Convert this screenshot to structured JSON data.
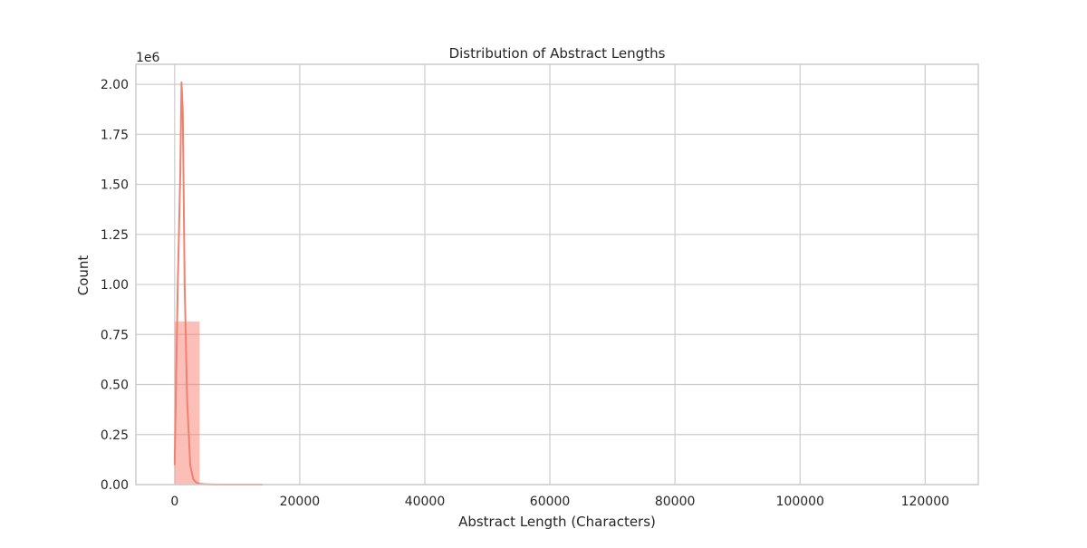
{
  "chart_data": {
    "type": "bar",
    "title": "Distribution of Abstract Lengths",
    "xlabel": "Abstract Length (Characters)",
    "ylabel": "Count",
    "y_offset_label": "1e6",
    "xlim": [
      -6200,
      128500
    ],
    "ylim": [
      0,
      2100000
    ],
    "x_ticks": [
      0,
      20000,
      40000,
      60000,
      80000,
      100000,
      120000
    ],
    "x_tick_labels": [
      "0",
      "20000",
      "40000",
      "60000",
      "80000",
      "100000",
      "120000"
    ],
    "y_ticks": [
      0,
      250000,
      500000,
      750000,
      1000000,
      1250000,
      1500000,
      1750000,
      2000000
    ],
    "y_tick_labels": [
      "0.00",
      "0.25",
      "0.50",
      "0.75",
      "1.00",
      "1.25",
      "1.50",
      "1.75",
      "2.00"
    ],
    "grid": true,
    "colors": {
      "bar": "#fa8072",
      "kde": "#f08070",
      "grid": "#cccccc",
      "spine": "#cccccc"
    },
    "bins": [
      {
        "x0": 0,
        "x1": 4000,
        "count": 815000
      },
      {
        "x0": 4000,
        "x1": 8000,
        "count": 4000
      },
      {
        "x0": 8000,
        "x1": 12000,
        "count": 600
      },
      {
        "x0": 12000,
        "x1": 16000,
        "count": 150
      }
    ],
    "kde": {
      "x": [
        0,
        500,
        900,
        1100,
        1300,
        1600,
        2000,
        2500,
        3000,
        3500,
        4000,
        5000,
        6000,
        8000,
        10000,
        14000
      ],
      "y": [
        100000,
        1000000,
        1550000,
        2010000,
        1870000,
        1000000,
        420000,
        95000,
        25000,
        9000,
        4000,
        1500,
        700,
        200,
        80,
        10
      ]
    }
  }
}
